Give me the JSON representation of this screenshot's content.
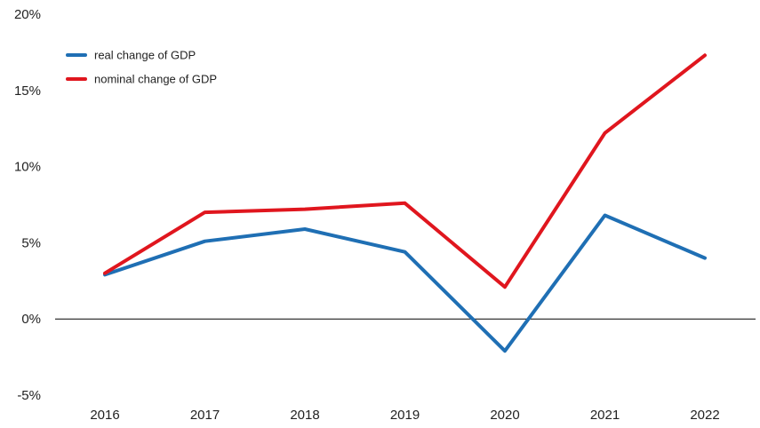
{
  "chart_data": {
    "type": "line",
    "categories": [
      "2016",
      "2017",
      "2018",
      "2019",
      "2020",
      "2021",
      "2022"
    ],
    "series": [
      {
        "name": "real change of GDP",
        "color": "#1f6fb4",
        "values": [
          2.9,
          5.1,
          5.9,
          4.4,
          -2.1,
          6.8,
          4.0
        ]
      },
      {
        "name": "nominal change of GDP",
        "color": "#e0161e",
        "values": [
          3.0,
          7.0,
          7.2,
          7.6,
          2.1,
          12.2,
          17.3
        ]
      }
    ],
    "ylim": [
      -5,
      20
    ],
    "y_ticks": [
      "20%",
      "15%",
      "10%",
      "5%",
      "0%",
      "-5%"
    ],
    "y_tick_values": [
      20,
      15,
      10,
      5,
      0,
      -5
    ],
    "legend_position": "top-left",
    "grid": false,
    "zero_line": true
  }
}
